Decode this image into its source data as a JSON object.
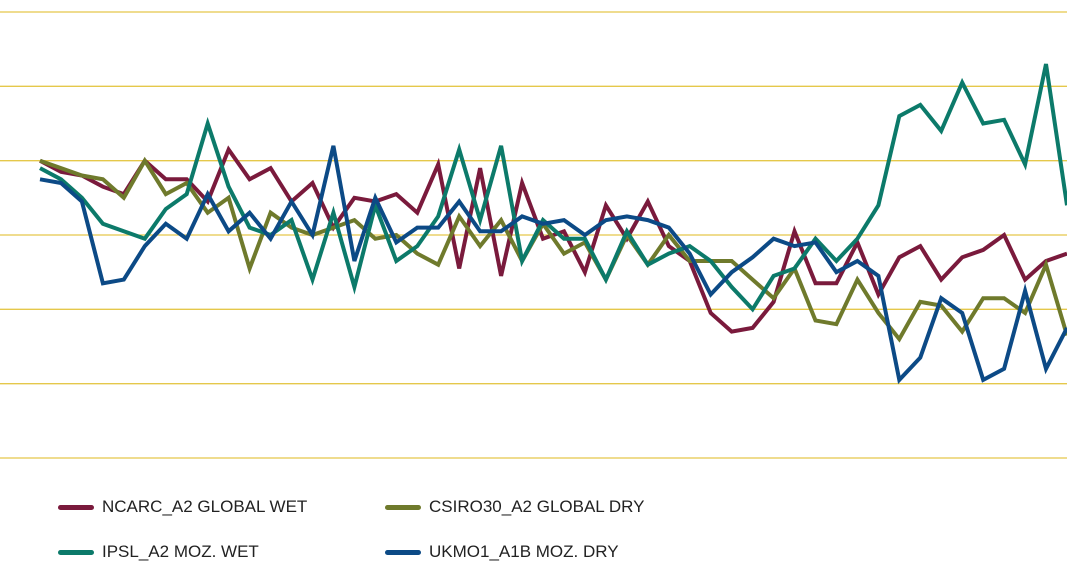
{
  "chart_data": {
    "type": "line",
    "title": "",
    "xlabel": "",
    "ylabel": "",
    "x": [
      1,
      2,
      3,
      4,
      5,
      6,
      7,
      8,
      9,
      10,
      11,
      12,
      13,
      14,
      15,
      16,
      17,
      18,
      19,
      20,
      21,
      22,
      23,
      24,
      25,
      26,
      27,
      28,
      29,
      30,
      31,
      32,
      33,
      34,
      35,
      36,
      37,
      38,
      39,
      40,
      41,
      42,
      43,
      44,
      45,
      46,
      47,
      48,
      49,
      50
    ],
    "xlim": [
      1,
      50
    ],
    "ylim": [
      0,
      6
    ],
    "grid_lines": [
      0,
      1,
      2,
      3,
      4,
      5,
      6
    ],
    "grid": true,
    "legend_position": "bottom",
    "series": [
      {
        "name": "NCARC_A2 GLOBAL WET",
        "color": "#7a1a3c",
        "values": [
          4.0,
          3.85,
          3.8,
          3.65,
          3.55,
          4.0,
          3.75,
          3.75,
          3.45,
          4.15,
          3.75,
          3.9,
          3.45,
          3.7,
          3.1,
          3.5,
          3.45,
          3.55,
          3.3,
          3.95,
          2.55,
          3.9,
          2.45,
          3.7,
          2.95,
          3.05,
          2.5,
          3.4,
          2.95,
          3.45,
          2.85,
          2.65,
          1.95,
          1.7,
          1.75,
          2.1,
          3.05,
          2.35,
          2.35,
          2.9,
          2.2,
          2.7,
          2.85,
          2.4,
          2.7,
          2.8,
          3.0,
          2.4,
          2.65,
          2.75
        ]
      },
      {
        "name": "CSIRO30_A2 GLOBAL DRY",
        "color": "#6f7a2c",
        "values": [
          4.0,
          3.9,
          3.8,
          3.75,
          3.5,
          4.0,
          3.55,
          3.7,
          3.3,
          3.5,
          2.55,
          3.3,
          3.1,
          3.0,
          3.1,
          3.2,
          2.95,
          3.0,
          2.75,
          2.6,
          3.25,
          2.85,
          3.2,
          2.65,
          3.15,
          2.75,
          2.9,
          2.4,
          3.0,
          2.6,
          3.0,
          2.65,
          2.65,
          2.65,
          2.4,
          2.15,
          2.55,
          1.85,
          1.8,
          2.4,
          1.95,
          1.6,
          2.1,
          2.05,
          1.7,
          2.15,
          2.15,
          1.95,
          2.6,
          1.65
        ]
      },
      {
        "name": "IPSL_A2 MOZ. WET",
        "color": "#0c7a6a",
        "values": [
          3.9,
          3.75,
          3.5,
          3.15,
          3.05,
          2.95,
          3.35,
          3.55,
          4.5,
          3.65,
          3.1,
          3.0,
          3.2,
          2.4,
          3.3,
          2.3,
          3.4,
          2.65,
          2.85,
          3.25,
          4.15,
          3.2,
          4.2,
          2.65,
          3.2,
          2.95,
          2.95,
          2.4,
          3.05,
          2.6,
          2.75,
          2.85,
          2.65,
          2.3,
          2.0,
          2.45,
          2.55,
          2.95,
          2.65,
          2.95,
          3.4,
          4.6,
          4.75,
          4.4,
          5.05,
          4.5,
          4.55,
          3.95,
          5.3,
          3.4
        ]
      },
      {
        "name": "UKMO1_A1B MOZ. DRY",
        "color": "#0c4a86",
        "values": [
          3.75,
          3.7,
          3.45,
          2.35,
          2.4,
          2.85,
          3.15,
          2.95,
          3.55,
          3.05,
          3.3,
          2.95,
          3.45,
          3.0,
          4.2,
          2.65,
          3.5,
          2.9,
          3.1,
          3.1,
          3.45,
          3.05,
          3.05,
          3.25,
          3.15,
          3.2,
          3.0,
          3.2,
          3.25,
          3.2,
          3.1,
          2.75,
          2.2,
          2.5,
          2.7,
          2.95,
          2.85,
          2.9,
          2.5,
          2.65,
          2.45,
          1.05,
          1.35,
          2.15,
          1.95,
          1.05,
          1.2,
          2.25,
          1.2,
          1.75
        ]
      }
    ]
  }
}
